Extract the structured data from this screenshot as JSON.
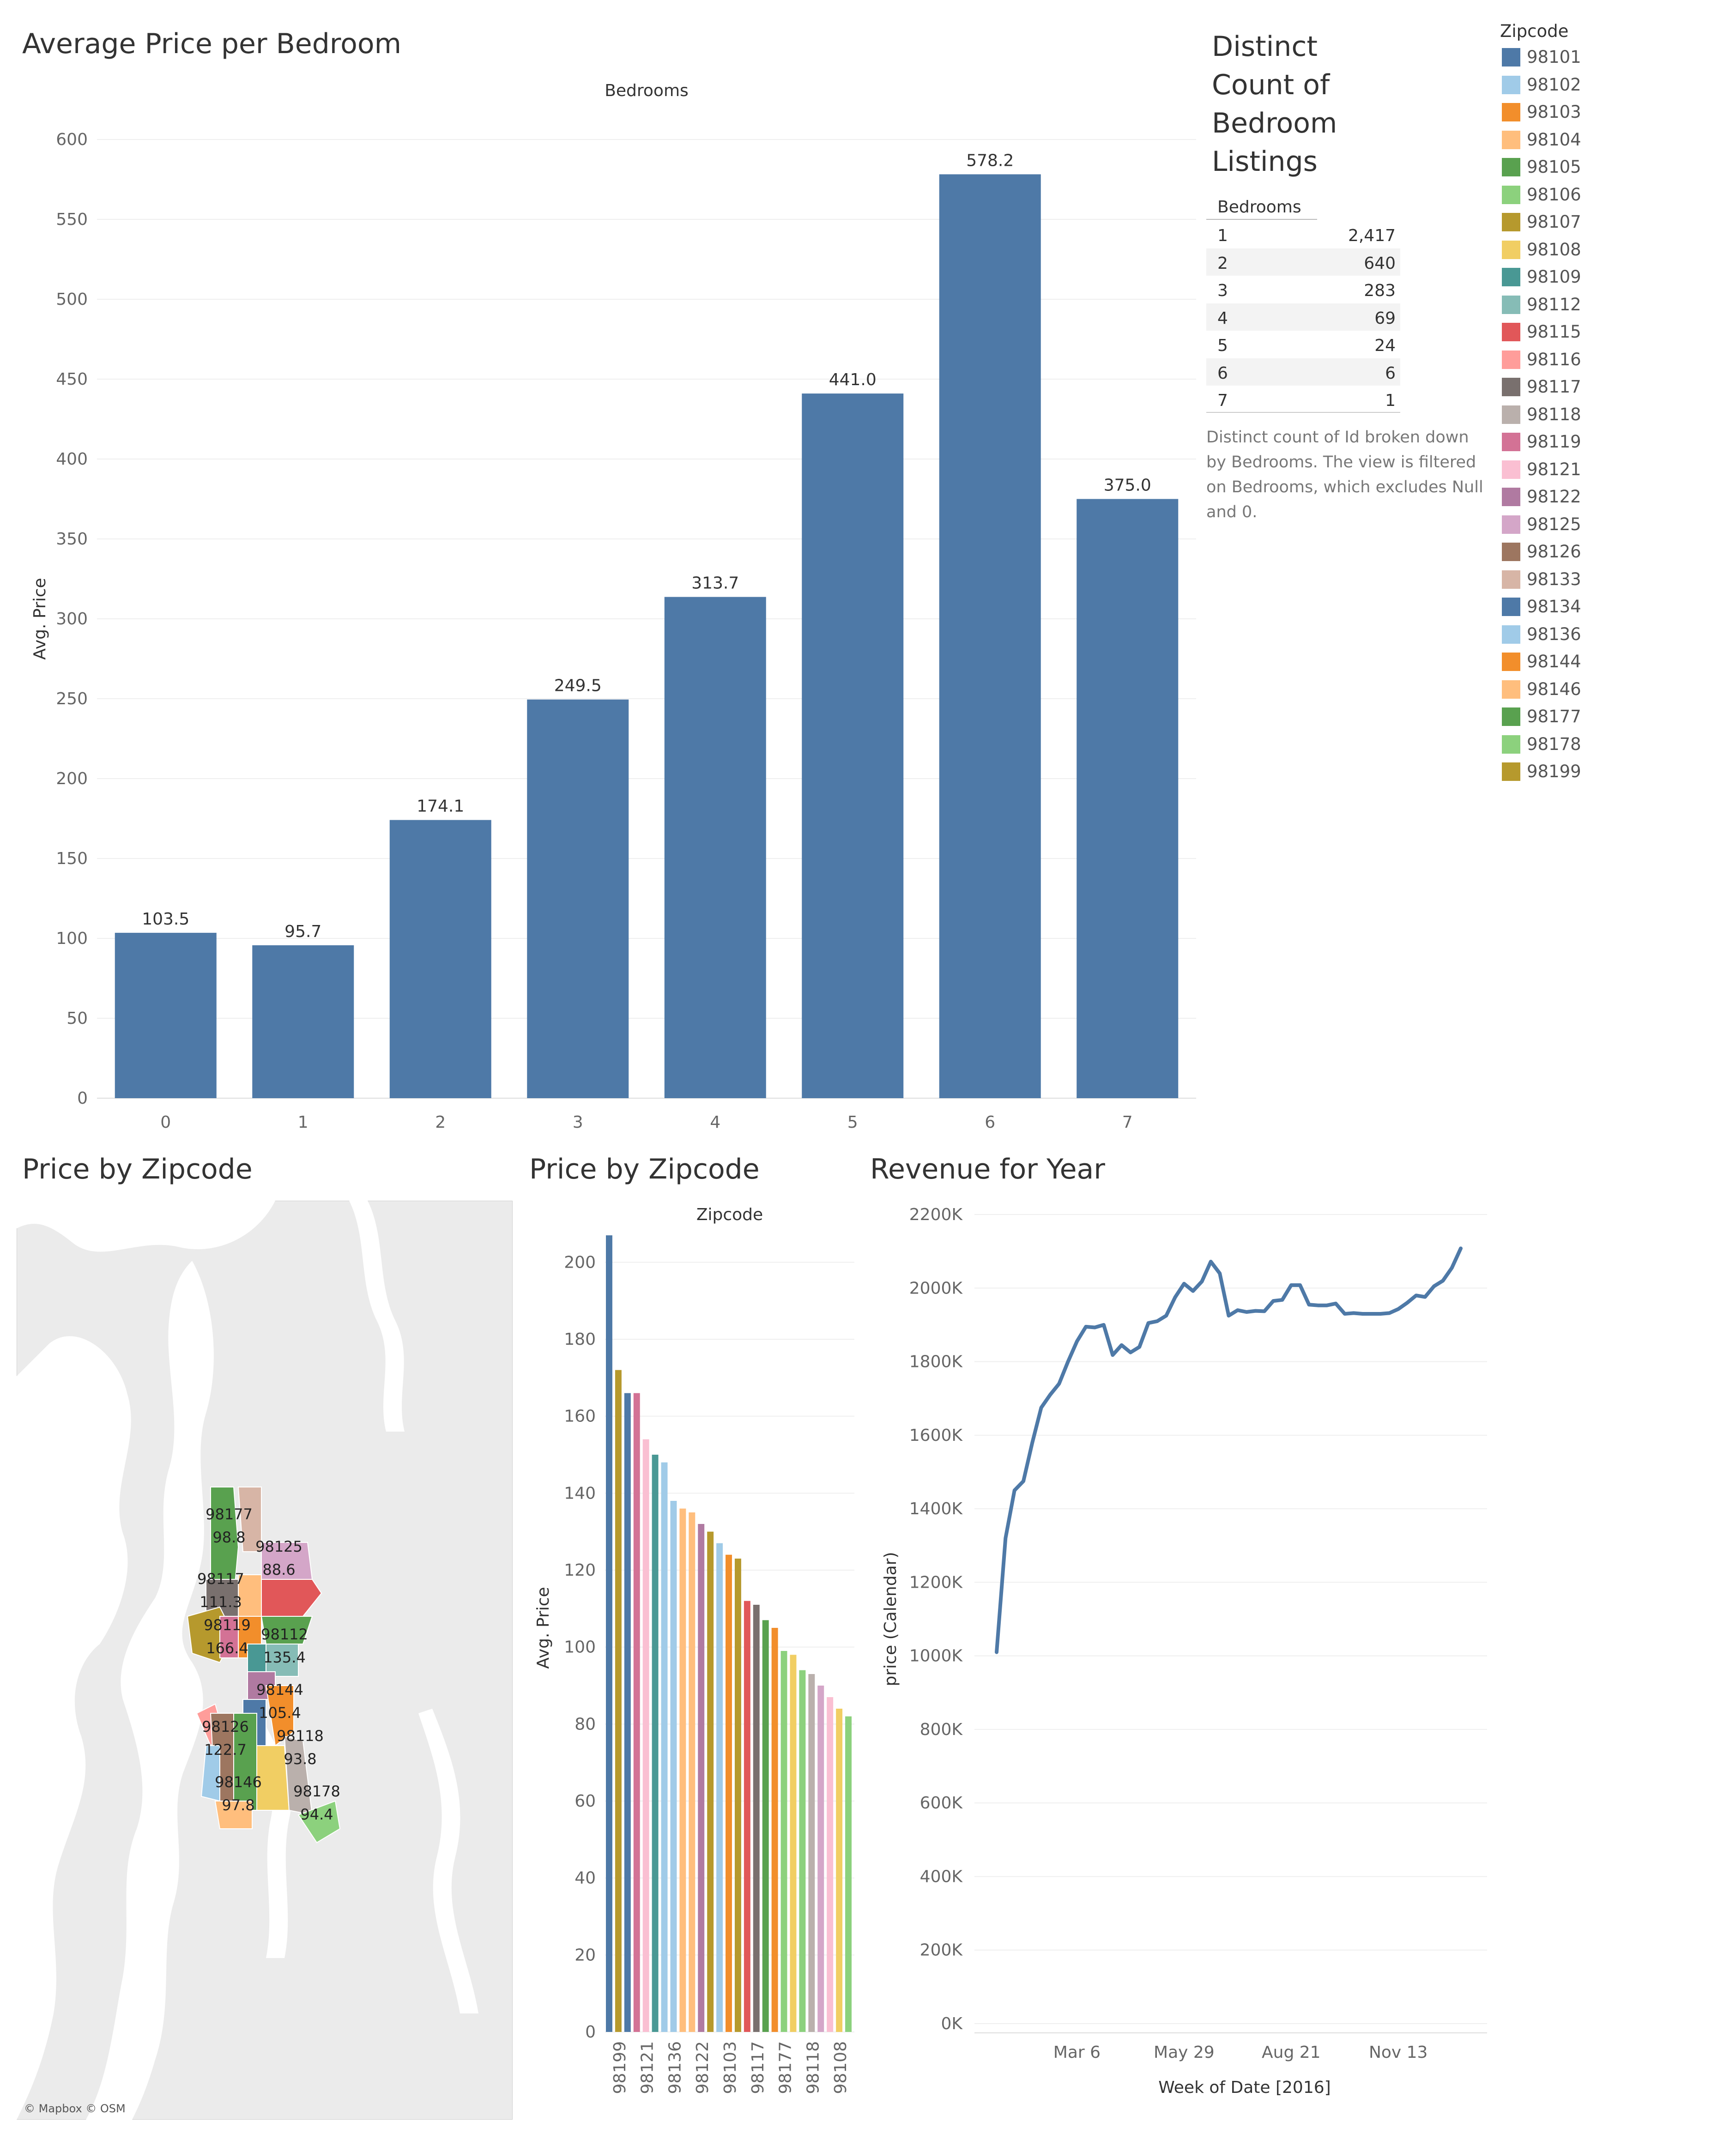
{
  "dashboard": {
    "bar_title": "Average Price per Bedroom",
    "table_title_lines": [
      "Distinct",
      "Count of",
      "Bedroom",
      "Listings"
    ],
    "table_header": "Bedrooms",
    "table_caption": "Distinct count of Id broken down by Bedrooms. The view is filtered on Bedrooms, which excludes Null and 0.",
    "legend_title": "Zipcode",
    "map_title": "Price by Zipcode",
    "zip_bar_title": "Price by Zipcode",
    "line_title": "Revenue for Year",
    "map_attribution": "© Mapbox © OSM"
  },
  "bedroom_table": [
    {
      "bedrooms": "1",
      "count": "2,417"
    },
    {
      "bedrooms": "2",
      "count": "640"
    },
    {
      "bedrooms": "3",
      "count": "283"
    },
    {
      "bedrooms": "4",
      "count": "69"
    },
    {
      "bedrooms": "5",
      "count": "24"
    },
    {
      "bedrooms": "6",
      "count": "6"
    },
    {
      "bedrooms": "7",
      "count": "1"
    }
  ],
  "legend": [
    {
      "zip": "98101",
      "color": "#4e79a7"
    },
    {
      "zip": "98102",
      "color": "#a0cbe8"
    },
    {
      "zip": "98103",
      "color": "#f28e2b"
    },
    {
      "zip": "98104",
      "color": "#ffbe7d"
    },
    {
      "zip": "98105",
      "color": "#59a14f"
    },
    {
      "zip": "98106",
      "color": "#8cd17d"
    },
    {
      "zip": "98107",
      "color": "#b6992d"
    },
    {
      "zip": "98108",
      "color": "#f1ce63"
    },
    {
      "zip": "98109",
      "color": "#499894"
    },
    {
      "zip": "98112",
      "color": "#86bcb6"
    },
    {
      "zip": "98115",
      "color": "#e15759"
    },
    {
      "zip": "98116",
      "color": "#ff9d9a"
    },
    {
      "zip": "98117",
      "color": "#79706e"
    },
    {
      "zip": "98118",
      "color": "#bab0ac"
    },
    {
      "zip": "98119",
      "color": "#d37295"
    },
    {
      "zip": "98121",
      "color": "#fabfd2"
    },
    {
      "zip": "98122",
      "color": "#b07aa1"
    },
    {
      "zip": "98125",
      "color": "#d4a6c8"
    },
    {
      "zip": "98126",
      "color": "#9d7660"
    },
    {
      "zip": "98133",
      "color": "#d7b5a6"
    },
    {
      "zip": "98134",
      "color": "#4e79a7"
    },
    {
      "zip": "98136",
      "color": "#a0cbe8"
    },
    {
      "zip": "98144",
      "color": "#f28e2b"
    },
    {
      "zip": "98146",
      "color": "#ffbe7d"
    },
    {
      "zip": "98177",
      "color": "#59a14f"
    },
    {
      "zip": "98178",
      "color": "#8cd17d"
    },
    {
      "zip": "98199",
      "color": "#b6992d"
    }
  ],
  "map_labels": [
    {
      "zip": "98177",
      "value": "98.8"
    },
    {
      "zip": "98125",
      "value": "88.6"
    },
    {
      "zip": "98117",
      "value": "111.3"
    },
    {
      "zip": "98119",
      "value": "166.4"
    },
    {
      "zip": "98112",
      "value": "135.4"
    },
    {
      "zip": "98144",
      "value": "105.4"
    },
    {
      "zip": "98126",
      "value": "122.7"
    },
    {
      "zip": "98118",
      "value": "93.8"
    },
    {
      "zip": "98146",
      "value": "97.8"
    },
    {
      "zip": "98178",
      "value": "94.4"
    }
  ],
  "chart_data": [
    {
      "type": "bar",
      "title": "Average Price per Bedroom",
      "xlabel": "Bedrooms",
      "ylabel": "Avg. Price",
      "categories": [
        "0",
        "1",
        "2",
        "3",
        "4",
        "5",
        "6",
        "7"
      ],
      "values": [
        103.5,
        95.7,
        174.1,
        249.5,
        313.7,
        441.0,
        578.2,
        375.0
      ],
      "value_labels": [
        "103.5",
        "95.7",
        "174.1",
        "249.5",
        "313.7",
        "441.0",
        "578.2",
        "375.0"
      ],
      "ylim": [
        0,
        600
      ],
      "yticks": [
        "0",
        "50",
        "100",
        "150",
        "200",
        "250",
        "300",
        "350",
        "400",
        "450",
        "500",
        "550",
        "600"
      ],
      "color": "#4e79a7",
      "grid": true
    },
    {
      "type": "table",
      "title": "Distinct Count of Bedroom Listings",
      "columns": [
        "Bedrooms",
        "Distinct count of Id"
      ],
      "rows": [
        [
          "1",
          2417
        ],
        [
          "2",
          640
        ],
        [
          "3",
          283
        ],
        [
          "4",
          69
        ],
        [
          "5",
          24
        ],
        [
          "6",
          6
        ],
        [
          "7",
          1
        ]
      ]
    },
    {
      "type": "bar",
      "title": "Price by Zipcode",
      "xlabel": "Zipcode",
      "ylabel": "Avg. Price",
      "ylim": [
        0,
        210
      ],
      "yticks": [
        "0",
        "20",
        "40",
        "60",
        "80",
        "100",
        "120",
        "140",
        "160",
        "180",
        "200"
      ],
      "visible_tick_labels": [
        "98199",
        "98121",
        "98136",
        "98122",
        "98103",
        "98117",
        "98177",
        "98118",
        "98108"
      ],
      "values": [
        207,
        172,
        166,
        166,
        154,
        150,
        148,
        138,
        136,
        135,
        132,
        130,
        127,
        124,
        123,
        112,
        111,
        107,
        105,
        99,
        98,
        94,
        93,
        90,
        87,
        84,
        82
      ],
      "colors": [
        "#4e79a7",
        "#b6992d",
        "#4e79a7",
        "#d37295",
        "#fabfd2",
        "#499894",
        "#a0cbe8",
        "#a0cbe8",
        "#ffbe7d",
        "#ffbe7d",
        "#b07aa1",
        "#b6992d",
        "#a0cbe8",
        "#f28e2b",
        "#b6992d",
        "#e15759",
        "#79706e",
        "#59a14f",
        "#f28e2b",
        "#8cd17d",
        "#f1ce63",
        "#8cd17d",
        "#bab0ac",
        "#d4a6c8",
        "#fabfd2",
        "#f1ce63",
        "#8cd17d"
      ],
      "grid": true
    },
    {
      "type": "line",
      "title": "Revenue for Year",
      "xlabel": "Week of Date [2016]",
      "ylabel": "price (Calendar)",
      "xticks": [
        "Mar 6",
        "May 29",
        "Aug 21",
        "Nov 13"
      ],
      "yticks": [
        "0K",
        "200K",
        "400K",
        "600K",
        "800K",
        "1000K",
        "1200K",
        "1400K",
        "1600K",
        "1800K",
        "2000K",
        "2200K"
      ],
      "ylim": [
        0,
        2200000
      ],
      "x_week_index": [
        0,
        1,
        2,
        3,
        4,
        5,
        6,
        7,
        8,
        9,
        10,
        11,
        12,
        13,
        14,
        15,
        16,
        17,
        18,
        19,
        20,
        21,
        22,
        23,
        24,
        25,
        26,
        27,
        28,
        29,
        30,
        31,
        32,
        33,
        34,
        35,
        36,
        37,
        38,
        39,
        40,
        41,
        42,
        43,
        44,
        45,
        46,
        47,
        48,
        49,
        50,
        51,
        52
      ],
      "values": [
        1010000,
        1320000,
        1450000,
        1475000,
        1580000,
        1675000,
        1710000,
        1740000,
        1800000,
        1855000,
        1895000,
        1893000,
        1900000,
        1818000,
        1845000,
        1825000,
        1840000,
        1905000,
        1910000,
        1925000,
        1975000,
        2012000,
        1992000,
        2018000,
        2072000,
        2040000,
        1925000,
        1940000,
        1935000,
        1938000,
        1937000,
        1965000,
        1968000,
        2008000,
        2008000,
        1955000,
        1953000,
        1953000,
        1958000,
        1930000,
        1932000,
        1930000,
        1930000,
        1930000,
        1932000,
        1943000,
        1960000,
        1980000,
        1976000,
        2005000,
        2020000,
        2055000,
        2108000
      ],
      "color": "#4e79a7",
      "grid": true
    }
  ]
}
